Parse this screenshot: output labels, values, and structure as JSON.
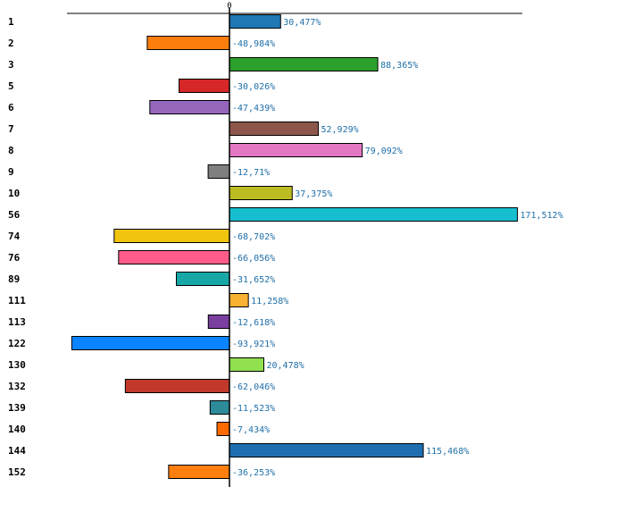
{
  "chart_data": {
    "type": "bar",
    "orientation": "horizontal",
    "title": "",
    "xlabel": "",
    "ylabel": "",
    "zero_tick_label": "0",
    "xlim": [
      -100,
      180
    ],
    "grid": false,
    "legend": "none",
    "categories": [
      "1",
      "2",
      "3",
      "5",
      "6",
      "7",
      "8",
      "9",
      "10",
      "56",
      "74",
      "76",
      "89",
      "111",
      "113",
      "122",
      "130",
      "132",
      "139",
      "140",
      "144",
      "152"
    ],
    "values": [
      30.477,
      -48.984,
      88.365,
      -30.026,
      -47.439,
      52.929,
      79.092,
      -12.71,
      37.375,
      171.512,
      -68.702,
      -66.056,
      -31.652,
      11.258,
      -12.618,
      -93.921,
      20.478,
      -62.046,
      -11.523,
      -7.434,
      115.468,
      -36.253
    ],
    "value_labels": [
      "30,477%",
      "-48,984%",
      "88,365%",
      "-30,026%",
      "-47,439%",
      "52,929%",
      "79,092%",
      "-12,71%",
      "37,375%",
      "171,512%",
      "-68,702%",
      "-66,056%",
      "-31,652%",
      "11,258%",
      "-12,618%",
      "-93,921%",
      "20,478%",
      "-62,046%",
      "-11,523%",
      "-7,434%",
      "115,468%",
      "-36,253%"
    ],
    "colors": [
      "#1f77b4",
      "#ff7f0e",
      "#2ca02c",
      "#d62728",
      "#9467bd",
      "#8c564b",
      "#e377c2",
      "#7f7f7f",
      "#bcbd22",
      "#17becf",
      "#f1c40f",
      "#ff5c8a",
      "#17a7a7",
      "#f9b233",
      "#7b3fa0",
      "#0a84ff",
      "#90e050",
      "#c0392b",
      "#2e8b9a",
      "#ff6a00",
      "#1f6fb0",
      "#ff7f0e"
    ]
  }
}
